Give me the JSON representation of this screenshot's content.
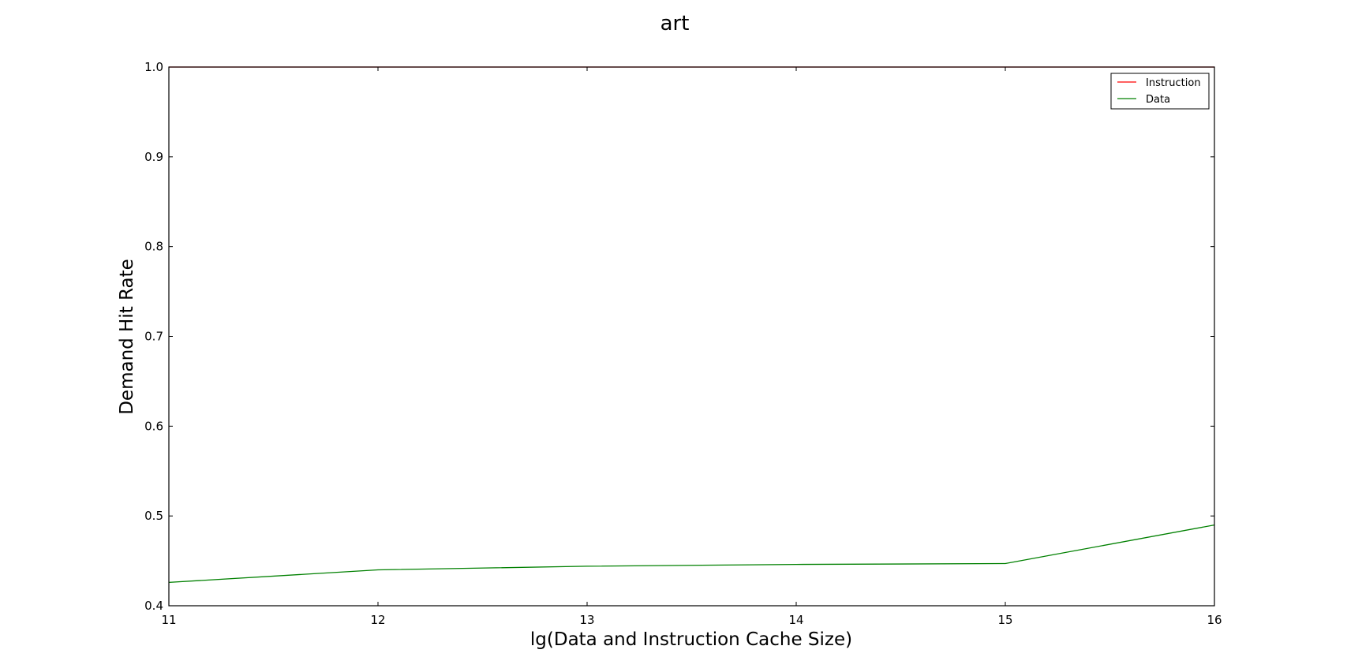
{
  "chart_data": {
    "type": "line",
    "title": "art",
    "xlabel": "lg(Data and Instruction Cache Size)",
    "ylabel": "Demand Hit Rate",
    "xlim": [
      11,
      16
    ],
    "ylim": [
      0.4,
      1.0
    ],
    "xticks": [
      11,
      12,
      13,
      14,
      15,
      16
    ],
    "xtick_labels": [
      "11",
      "12",
      "13",
      "14",
      "15",
      "16"
    ],
    "yticks": [
      0.4,
      0.5,
      0.6,
      0.7,
      0.8,
      0.9,
      1.0
    ],
    "ytick_labels": [
      "0.4",
      "0.5",
      "0.6",
      "0.7",
      "0.8",
      "0.9",
      "1.0"
    ],
    "grid": false,
    "legend_position": "top-right",
    "x": [
      11,
      12,
      13,
      14,
      15,
      16
    ],
    "series": [
      {
        "name": "Instruction",
        "color": "#ff0000",
        "values": [
          1.0,
          1.0,
          1.0,
          1.0,
          1.0,
          1.0
        ]
      },
      {
        "name": "Data",
        "color": "#008000",
        "values": [
          0.426,
          0.44,
          0.444,
          0.446,
          0.447,
          0.49
        ]
      }
    ]
  }
}
